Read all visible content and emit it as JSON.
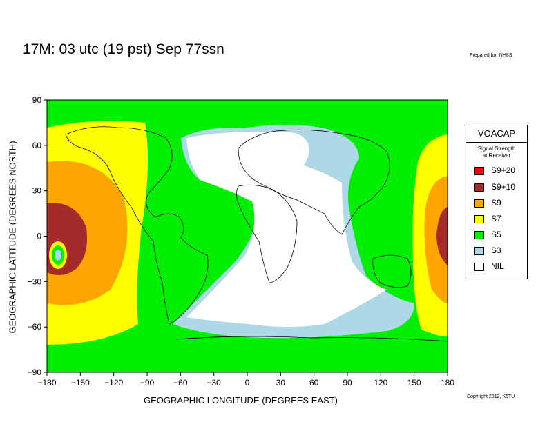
{
  "title": "17M:  03 utc (19 pst) Sep 77ssn",
  "prepared_for": "Prepared for: NH8S",
  "copyright": "Copyright 2012, K6TU",
  "axes": {
    "xlabel": "GEOGRAPHIC LONGITUDE (DEGREES EAST)",
    "ylabel": "GEOGRAPHIC LATITUDE (DEGREES NORTH)",
    "xticks": [
      "−180",
      "−150",
      "−120",
      "−90",
      "−60",
      "−30",
      "0",
      "30",
      "60",
      "90",
      "120",
      "150",
      "180"
    ],
    "yticks": [
      "90",
      "60",
      "30",
      "0",
      "−30",
      "−60",
      "−90"
    ]
  },
  "legend": {
    "title": "VOACAP",
    "subtitle_line1": "Signal Strength",
    "subtitle_line2": "at Receiver",
    "items": [
      {
        "label": "S9+20",
        "color": "#ff0000"
      },
      {
        "label": "S9+10",
        "color": "#a52a2a"
      },
      {
        "label": "S9",
        "color": "#ffa500"
      },
      {
        "label": "S7",
        "color": "#ffff00"
      },
      {
        "label": "S5",
        "color": "#00ee00"
      },
      {
        "label": "S3",
        "color": "#add8e6"
      },
      {
        "label": "NIL",
        "color": "#ffffff"
      }
    ]
  },
  "chart_data": {
    "type": "heatmap",
    "xlim": [
      -180,
      180
    ],
    "ylim": [
      -90,
      90
    ],
    "background_level": "S5",
    "description_levels": [
      "S9+20",
      "S9+10",
      "S9",
      "S7",
      "S5",
      "S3",
      "NIL"
    ]
  }
}
